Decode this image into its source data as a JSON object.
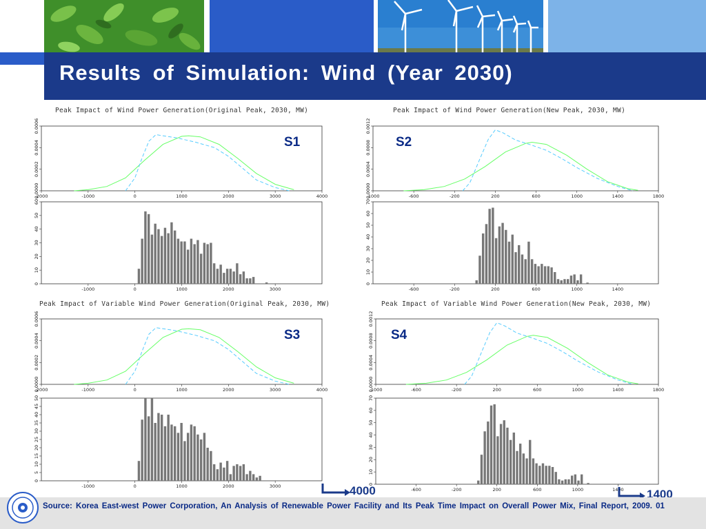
{
  "title": "Results  of  Simulation:  Wind  (Year  2030)",
  "source": "Source:  Korea  East-west  Power  Corporation,  An  Analysis  of  Renewable  Power  Facility  and  Its  Peak  Time  Impact  on  Overall  Power  Mix,  Final  Report,  2009.  01",
  "callouts": {
    "left": "4000",
    "right": "1400"
  },
  "colors": {
    "header_band": "#1b3a8a",
    "title_text": "#ffffff",
    "accent_blue": "#2a5cc8",
    "scenario_label": "#0a2a86",
    "fitted_curve": "#66ff66",
    "empirical_curve": "#55ccff",
    "bars": "#777777",
    "footer": "#e3e3e3"
  },
  "header_images": [
    "green-leaves",
    "wind-turbines"
  ],
  "chart_data": [
    {
      "id": "S1",
      "title": "Peak Impact of Wind Power Generation(Original Peak, 2030, MW)",
      "scenario": "S1",
      "density": {
        "type": "line",
        "xlim": [
          -2000,
          4000
        ],
        "xticks": [
          "-2000",
          "-1000",
          "0",
          "1000",
          "2000",
          "3000",
          "4000"
        ],
        "xtick_values": [
          -2000,
          -1000,
          0,
          1000,
          2000,
          3000,
          4000
        ],
        "ylim": [
          0,
          0.0006
        ],
        "yticks": [
          "0.0000",
          "0.0002",
          "0.0004",
          "0.0006"
        ],
        "ytick_values": [
          0,
          0.0002,
          0.0004,
          0.0006
        ],
        "series": [
          {
            "style": "solid",
            "color": "#66ff66",
            "x": [
              -1300,
              -1000,
              -600,
              -200,
              200,
              600,
              1000,
              1150,
              1400,
              1800,
              2200,
              2600,
              3000,
              3400
            ],
            "y": [
              0.0,
              1e-05,
              4e-05,
              0.00012,
              0.00028,
              0.00043,
              0.000505,
              0.00051,
              0.0005,
              0.00043,
              0.0003,
              0.00016,
              6e-05,
              1e-05
            ]
          },
          {
            "style": "dashed",
            "color": "#55ccff",
            "x": [
              -200,
              0,
              150,
              300,
              450,
              600,
              900,
              1300,
              1700,
              2000,
              2300,
              2600,
              3000,
              3300
            ],
            "y": [
              0.0,
              0.00012,
              0.0003,
              0.00046,
              0.00052,
              0.00051,
              0.00049,
              0.00045,
              0.0004,
              0.00032,
              0.00021,
              0.0001,
              3e-05,
              0.0
            ]
          }
        ]
      },
      "histogram": {
        "type": "bar",
        "xlim": [
          -2000,
          4000
        ],
        "xticks": [
          "-1000",
          "0",
          "1000",
          "2000",
          "3000"
        ],
        "xtick_values": [
          -1000,
          0,
          1000,
          2000,
          3000
        ],
        "ylim": [
          0,
          60
        ],
        "yticks": [
          "0",
          "10",
          "20",
          "30",
          "40",
          "50",
          "60"
        ],
        "ytick_values": [
          0,
          10,
          20,
          30,
          40,
          50,
          60
        ],
        "bin_start": 50,
        "bin_width": 70,
        "values": [
          11,
          33,
          53,
          51,
          36,
          44,
          40,
          35,
          41,
          37,
          45,
          39,
          33,
          31,
          31,
          25,
          33,
          29,
          32,
          22,
          30,
          29,
          30,
          15,
          11,
          14,
          8,
          11,
          11,
          9,
          15,
          7,
          9,
          4,
          4,
          5,
          0,
          0,
          0,
          1
        ]
      }
    },
    {
      "id": "S2",
      "title": "Peak Impact of Wind Power Generation(New Peak, 2030, MW)",
      "scenario": "S2",
      "density": {
        "type": "line",
        "xlim": [
          -1000,
          1800
        ],
        "xticks": [
          "-1000",
          "-600",
          "-200",
          "200",
          "600",
          "1000",
          "1400",
          "1800"
        ],
        "xtick_values": [
          -1000,
          -600,
          -200,
          200,
          600,
          1000,
          1400,
          1800
        ],
        "ylim": [
          0,
          0.0012
        ],
        "yticks": [
          "0.0000",
          "0.0004",
          "0.0008",
          "0.0012"
        ],
        "ytick_values": [
          0,
          0.0004,
          0.0008,
          0.0012
        ],
        "series": [
          {
            "style": "solid",
            "color": "#66ff66",
            "x": [
              -700,
              -500,
              -300,
              -100,
              100,
              300,
              500,
              560,
              700,
              900,
              1100,
              1300,
              1500,
              1600
            ],
            "y": [
              0.0,
              2e-05,
              8e-05,
              0.00022,
              0.00045,
              0.00072,
              0.00088,
              0.0009,
              0.00086,
              0.00066,
              0.0004,
              0.00017,
              4e-05,
              1e-05
            ]
          },
          {
            "style": "dashed",
            "color": "#55ccff",
            "x": [
              -120,
              -50,
              50,
              130,
              200,
              280,
              400,
              550,
              700,
              850,
              1000,
              1200,
              1400,
              1550
            ],
            "y": [
              0.0,
              0.00015,
              0.0006,
              0.00095,
              0.00113,
              0.00107,
              0.00094,
              0.00085,
              0.00075,
              0.0006,
              0.00043,
              0.00023,
              8e-05,
              0.0
            ]
          }
        ]
      },
      "histogram": {
        "type": "bar",
        "xlim": [
          -1000,
          1800
        ],
        "xticks": [
          "-600",
          "-200",
          "200",
          "600",
          "1000",
          "1400"
        ],
        "xtick_values": [
          -600,
          -200,
          200,
          600,
          1000,
          1400
        ],
        "ylim": [
          0,
          70
        ],
        "yticks": [
          "0",
          "10",
          "20",
          "30",
          "40",
          "50",
          "60",
          "70"
        ],
        "ytick_values": [
          0,
          10,
          20,
          30,
          40,
          50,
          60,
          70
        ],
        "bin_start": 0,
        "bin_width": 32,
        "values": [
          3,
          24,
          43,
          51,
          64,
          65,
          39,
          49,
          52,
          46,
          36,
          42,
          27,
          33,
          25,
          21,
          36,
          21,
          17,
          15,
          17,
          15,
          15,
          14,
          10,
          4,
          3,
          4,
          4,
          7,
          8,
          3,
          8,
          0,
          1,
          0,
          0,
          0,
          0,
          0,
          0,
          0,
          0
        ]
      }
    },
    {
      "id": "S3",
      "title": "Peak Impact of Variable Wind Power Generation(Original Peak, 2030, MW)",
      "scenario": "S3",
      "density": {
        "type": "line",
        "xlim": [
          -2000,
          4000
        ],
        "xticks": [
          "-2000",
          "-1000",
          "0",
          "1000",
          "2000",
          "3000",
          "4000"
        ],
        "xtick_values": [
          -2000,
          -1000,
          0,
          1000,
          2000,
          3000,
          4000
        ],
        "ylim": [
          0,
          0.0006
        ],
        "yticks": [
          "0.0000",
          "0.0002",
          "0.0004",
          "0.0006"
        ],
        "ytick_values": [
          0,
          0.0002,
          0.0004,
          0.0006
        ],
        "series": [
          {
            "style": "solid",
            "color": "#66ff66",
            "x": [
              -1300,
              -1000,
              -600,
              -200,
              200,
              600,
              1000,
              1150,
              1400,
              1800,
              2200,
              2600,
              3000,
              3400
            ],
            "y": [
              0.0,
              1e-05,
              4e-05,
              0.00012,
              0.00028,
              0.00043,
              0.000505,
              0.00051,
              0.0005,
              0.00043,
              0.0003,
              0.00016,
              6e-05,
              1e-05
            ]
          },
          {
            "style": "dashed",
            "color": "#55ccff",
            "x": [
              -200,
              0,
              150,
              300,
              450,
              600,
              900,
              1300,
              1700,
              2000,
              2300,
              2600,
              3000,
              3300
            ],
            "y": [
              0.0,
              0.00012,
              0.0003,
              0.00046,
              0.00052,
              0.00051,
              0.00049,
              0.00045,
              0.0004,
              0.00032,
              0.00021,
              0.0001,
              3e-05,
              0.0
            ]
          }
        ]
      },
      "histogram": {
        "type": "bar",
        "xlim": [
          -2000,
          4000
        ],
        "xticks": [
          "-1000",
          "0",
          "1000",
          "2000",
          "3000"
        ],
        "xtick_values": [
          -1000,
          0,
          1000,
          2000,
          3000
        ],
        "ylim": [
          0,
          50
        ],
        "yticks": [
          "0",
          "5",
          "10",
          "15",
          "20",
          "25",
          "30",
          "35",
          "40",
          "45",
          "50"
        ],
        "ytick_values": [
          0,
          5,
          10,
          15,
          20,
          25,
          30,
          35,
          40,
          45,
          50
        ],
        "bin_start": 50,
        "bin_width": 70,
        "values": [
          12,
          37,
          50,
          39,
          50,
          35,
          41,
          40,
          33,
          40,
          34,
          33,
          29,
          35,
          24,
          29,
          34,
          33,
          28,
          25,
          29,
          20,
          18,
          10,
          7,
          11,
          8,
          12,
          4,
          9,
          10,
          9,
          10,
          4,
          6,
          4,
          2,
          3,
          0,
          0
        ]
      }
    },
    {
      "id": "S4",
      "title": "Peak Impact of Variable Wind Power Generation(New Peak, 2030, MW)",
      "scenario": "S4",
      "density": {
        "type": "line",
        "xlim": [
          -1000,
          1800
        ],
        "xticks": [
          "-1000",
          "-600",
          "-200",
          "200",
          "600",
          "1000",
          "1400",
          "1800"
        ],
        "xtick_values": [
          -1000,
          -600,
          -200,
          200,
          600,
          1000,
          1400,
          1800
        ],
        "ylim": [
          0,
          0.0012
        ],
        "yticks": [
          "0.0000",
          "0.0004",
          "0.0008",
          "0.0012"
        ],
        "ytick_values": [
          0,
          0.0004,
          0.0008,
          0.0012
        ],
        "series": [
          {
            "style": "solid",
            "color": "#66ff66",
            "x": [
              -700,
              -500,
              -300,
              -100,
              100,
              300,
              500,
              560,
              700,
              900,
              1100,
              1300,
              1500,
              1600
            ],
            "y": [
              0.0,
              2e-05,
              8e-05,
              0.00022,
              0.00045,
              0.00072,
              0.00088,
              0.0009,
              0.00086,
              0.00066,
              0.0004,
              0.00017,
              4e-05,
              1e-05
            ]
          },
          {
            "style": "dashed",
            "color": "#55ccff",
            "x": [
              -120,
              -50,
              50,
              130,
              200,
              280,
              400,
              550,
              700,
              850,
              1000,
              1200,
              1400,
              1550
            ],
            "y": [
              0.0,
              0.00015,
              0.0006,
              0.00095,
              0.00113,
              0.00107,
              0.00094,
              0.00085,
              0.00075,
              0.0006,
              0.00043,
              0.00023,
              8e-05,
              0.0
            ]
          }
        ]
      },
      "histogram": {
        "type": "bar",
        "xlim": [
          -1000,
          1800
        ],
        "xticks": [
          "-600",
          "-200",
          "200",
          "600",
          "1000",
          "1400"
        ],
        "xtick_values": [
          -600,
          -200,
          200,
          600,
          1000,
          1400
        ],
        "ylim": [
          0,
          70
        ],
        "yticks": [
          "0",
          "10",
          "20",
          "30",
          "40",
          "50",
          "60",
          "70"
        ],
        "ytick_values": [
          0,
          10,
          20,
          30,
          40,
          50,
          60,
          70
        ],
        "bin_start": 0,
        "bin_width": 32,
        "values": [
          3,
          24,
          43,
          51,
          64,
          65,
          39,
          49,
          52,
          46,
          36,
          42,
          27,
          33,
          25,
          21,
          36,
          21,
          17,
          15,
          17,
          15,
          15,
          14,
          10,
          4,
          3,
          4,
          4,
          7,
          8,
          3,
          8,
          0,
          1,
          0,
          0,
          0,
          0,
          0,
          0,
          0,
          0
        ]
      }
    }
  ]
}
